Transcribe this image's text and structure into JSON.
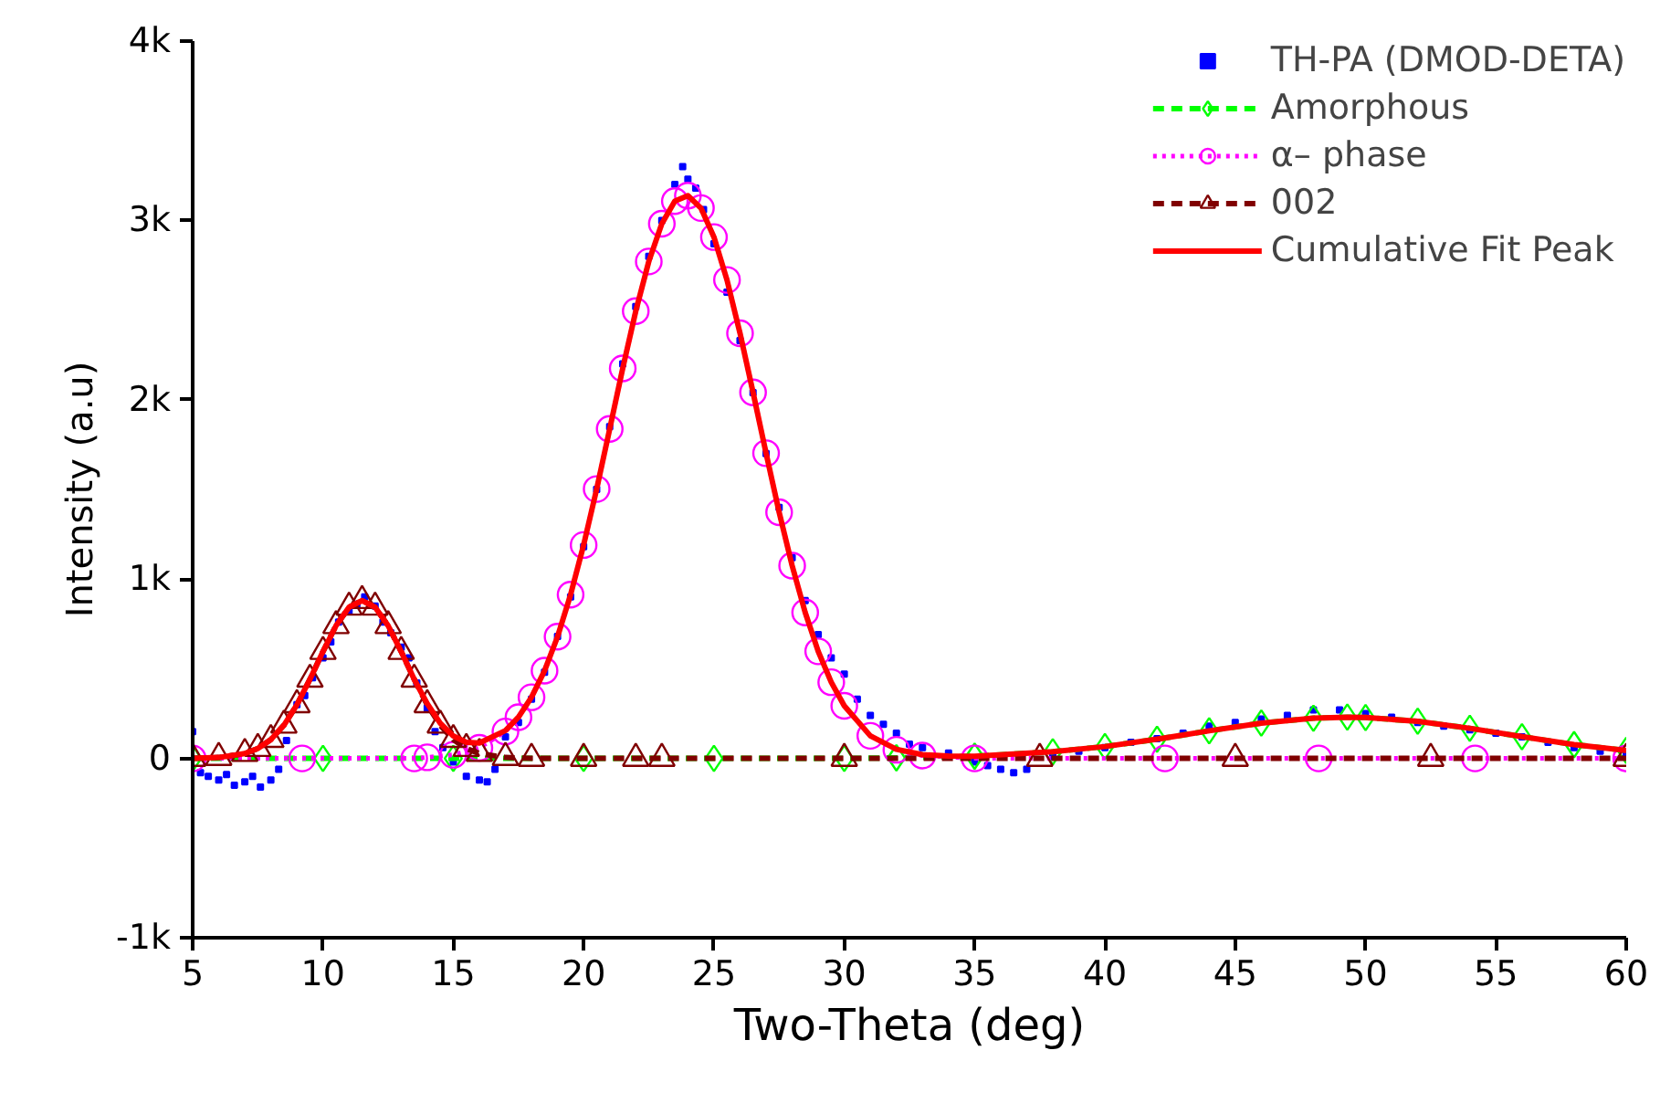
{
  "chart_data": {
    "type": "line",
    "xlabel": "Two-Theta (deg)",
    "ylabel": "Intensity (a.u)",
    "xlim": [
      5,
      60
    ],
    "ylim": [
      -1000,
      4000
    ],
    "xticks": [
      5,
      10,
      15,
      20,
      25,
      30,
      35,
      40,
      45,
      50,
      55,
      60
    ],
    "yticks": [
      {
        "value": -1000,
        "label": "-1k"
      },
      0,
      {
        "value": 1000,
        "label": "1k"
      },
      {
        "value": 2000,
        "label": "2k"
      },
      {
        "value": 3000,
        "label": "3k"
      },
      {
        "value": 4000,
        "label": "4k"
      }
    ],
    "grid": false,
    "legend": "top right",
    "series": [
      {
        "name": "TH-PA (DMOD-DETA)",
        "type": "scatter",
        "marker": "square",
        "color": "#0000ff",
        "x": [
          5,
          5.3,
          5.6,
          6,
          6.3,
          6.6,
          7,
          7.3,
          7.6,
          8,
          8.3,
          8.6,
          9,
          9.3,
          9.6,
          10,
          10.3,
          10.6,
          11,
          11.3,
          11.6,
          12,
          12.3,
          12.6,
          13,
          13.3,
          13.6,
          14,
          14.3,
          14.6,
          15,
          15.5,
          16,
          16.3,
          16.6,
          17,
          17.5,
          18,
          18.5,
          19,
          19.5,
          20,
          20.5,
          21,
          21.5,
          22,
          22.5,
          23,
          23.5,
          23.8,
          24,
          24.3,
          24.6,
          25,
          25.5,
          26,
          26.5,
          27,
          27.5,
          28,
          28.5,
          29,
          29.5,
          30,
          30.5,
          31,
          31.5,
          32,
          32.5,
          33,
          34,
          35,
          35.5,
          36,
          36.5,
          37,
          38,
          39,
          40,
          41,
          42,
          43,
          44,
          45,
          46,
          47,
          48,
          49,
          50,
          51,
          52,
          53,
          54,
          55,
          56,
          57,
          58,
          59,
          60
        ],
        "values": [
          150,
          -80,
          -100,
          -120,
          -90,
          -150,
          -130,
          -100,
          -160,
          -120,
          -60,
          100,
          300,
          350,
          450,
          560,
          650,
          760,
          820,
          860,
          900,
          850,
          760,
          700,
          620,
          560,
          420,
          280,
          150,
          60,
          -20,
          -100,
          -120,
          -130,
          -60,
          120,
          200,
          330,
          480,
          680,
          900,
          1180,
          1500,
          1850,
          2200,
          2520,
          2800,
          3000,
          3200,
          3300,
          3230,
          3180,
          3060,
          2870,
          2600,
          2330,
          2040,
          1700,
          1400,
          1120,
          880,
          690,
          560,
          470,
          330,
          240,
          190,
          140,
          80,
          60,
          30,
          -20,
          -40,
          -60,
          -80,
          -60,
          10,
          40,
          60,
          90,
          110,
          140,
          180,
          200,
          220,
          240,
          270,
          270,
          250,
          230,
          200,
          180,
          160,
          140,
          120,
          90,
          60,
          40,
          20
        ]
      },
      {
        "name": "Amorphous",
        "marker": "diamond",
        "line_style": "dashed",
        "color": "#00ff00",
        "x": [
          5,
          10,
          15,
          20,
          25,
          30,
          32,
          35,
          38,
          40,
          42,
          44,
          46,
          48,
          49.3,
          50,
          52,
          54,
          56,
          58,
          60
        ],
        "values": [
          0,
          0,
          0,
          0,
          0,
          0,
          3,
          12,
          37,
          66,
          107,
          154,
          197,
          224,
          230,
          228,
          207,
          168,
          121,
          77,
          44
        ]
      },
      {
        "name": "α– phase",
        "marker": "circle",
        "line_style": "dotted",
        "color": "#ff00ff",
        "x": [
          5,
          9.2,
          13.5,
          14,
          15,
          16,
          17,
          17.5,
          18,
          18.5,
          19,
          19.5,
          20,
          20.5,
          21,
          21.5,
          22,
          22.5,
          23,
          23.5,
          24,
          24.5,
          25,
          25.5,
          26,
          26.5,
          27,
          27.5,
          28,
          28.5,
          29,
          29.5,
          30,
          31,
          32,
          33,
          35,
          42.3,
          48.2,
          54.2,
          60
        ],
        "values": [
          0,
          0,
          0,
          6,
          20,
          59,
          150,
          230,
          341,
          489,
          679,
          913,
          1190,
          1502,
          1837,
          2175,
          2494,
          2771,
          2982,
          3108,
          3138,
          3069,
          2907,
          2668,
          2371,
          2041,
          1702,
          1373,
          1075,
          814,
          597,
          425,
          293,
          126,
          48,
          16,
          0,
          0,
          0,
          0,
          0
        ]
      },
      {
        "name": "002",
        "marker": "triangle",
        "line_style": "dashed",
        "color": "#800000",
        "x": [
          5,
          6,
          7,
          7.5,
          8,
          8.5,
          9,
          9.5,
          10,
          10.5,
          11,
          11.5,
          12,
          12.5,
          13,
          13.5,
          14,
          14.5,
          15,
          15.5,
          16,
          17,
          18,
          20,
          22,
          23,
          30,
          37.5,
          45,
          52.5,
          60
        ],
        "values": [
          0,
          5,
          27,
          55,
          105,
          185,
          299,
          441,
          596,
          740,
          843,
          880,
          843,
          740,
          596,
          441,
          299,
          185,
          105,
          55,
          27,
          5,
          0,
          0,
          0,
          0,
          0,
          0,
          0,
          0,
          0
        ]
      },
      {
        "name": "Cumulative Fit Peak",
        "marker": "none",
        "line_style": "solid",
        "color": "#ff0000",
        "x": [
          5,
          6,
          7,
          7.5,
          8,
          8.5,
          9,
          9.5,
          10,
          10.5,
          11,
          11.5,
          12,
          12.5,
          13,
          13.5,
          14,
          14.5,
          15,
          15.5,
          16,
          17,
          17.5,
          18,
          18.5,
          19,
          19.5,
          20,
          20.5,
          21,
          21.5,
          22,
          22.5,
          23,
          23.5,
          24,
          24.5,
          25,
          25.5,
          26,
          26.5,
          27,
          27.5,
          28,
          28.5,
          29,
          29.5,
          30,
          31,
          32,
          33,
          34,
          35,
          38,
          40,
          42,
          44,
          46,
          48,
          49.3,
          50,
          52,
          54,
          56,
          58,
          60
        ],
        "values": [
          0,
          5,
          27,
          55,
          105,
          185,
          299,
          441,
          596,
          740,
          843,
          880,
          843,
          740,
          596,
          441,
          305,
          196,
          125,
          90,
          86,
          155,
          230,
          341,
          489,
          679,
          913,
          1190,
          1502,
          1837,
          2175,
          2494,
          2771,
          2982,
          3108,
          3138,
          3069,
          2907,
          2668,
          2371,
          2041,
          1702,
          1373,
          1075,
          814,
          597,
          425,
          293,
          126,
          51,
          21,
          13,
          12,
          37,
          66,
          107,
          154,
          197,
          224,
          230,
          228,
          207,
          168,
          121,
          77,
          44
        ]
      }
    ]
  }
}
